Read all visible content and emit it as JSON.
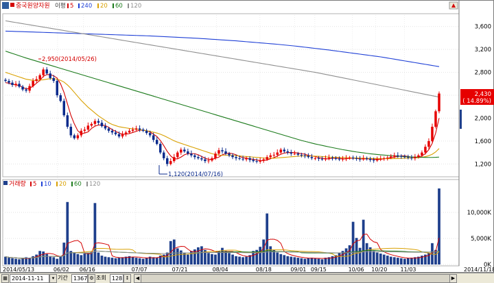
{
  "header": {
    "title": "중국원양자원",
    "ma_prefix": "이평",
    "ma": [
      {
        "label": "5",
        "color": "#d40000"
      },
      {
        "label": "240",
        "color": "#1e3fd6"
      },
      {
        "label": "20",
        "color": "#d9a000"
      },
      {
        "label": "60",
        "color": "#1a7a1a"
      },
      {
        "label": "120",
        "color": "#8e8e8e"
      }
    ]
  },
  "volume_header": {
    "title": "거래량",
    "ma": [
      {
        "label": "5",
        "color": "#d40000"
      },
      {
        "label": "10",
        "color": "#1e3fd6"
      },
      {
        "label": "20",
        "color": "#d9a000"
      },
      {
        "label": "60",
        "color": "#1a7a1a"
      },
      {
        "label": "120",
        "color": "#8e8e8e"
      }
    ]
  },
  "annotations": {
    "high": "2,950(2014/05/26)",
    "low": "1,120(2014/07/16)"
  },
  "current_price": {
    "price": "2,430",
    "change": "( 14.89%)"
  },
  "x_labels": [
    "2014/05/13",
    "06/02",
    "06/16",
    "07/07",
    "07/21",
    "08/04",
    "08/18",
    "09/01",
    "09/15",
    "10/06",
    "10/20",
    "11/03",
    "2014/11/18"
  ],
  "toolbar": {
    "date": "2014-11-11",
    "period_label": "기간",
    "period_value": "1367",
    "view_label": "조회",
    "count_value": "128"
  },
  "colors": {
    "up": "#e60000",
    "down": "#0a2a8c",
    "volume": "#1e3f8c"
  },
  "chart_data": [
    {
      "type": "candlestick",
      "title": "",
      "ylim": [
        1000,
        3800
      ],
      "y_ticks": [
        "3,600",
        "3,200",
        "2,800",
        "2,400",
        "2,000",
        "1,600",
        "1,200"
      ],
      "y_tick_values": [
        3600,
        3200,
        2800,
        2400,
        2000,
        1600,
        1200
      ],
      "x_tick_labels": [
        "2014/05/13",
        "06/02",
        "06/16",
        "07/07",
        "07/21",
        "08/04",
        "08/18",
        "09/01",
        "09/15",
        "10/06",
        "10/20",
        "11/03",
        "2014/11/18"
      ],
      "close": [
        2650,
        2620,
        2580,
        2600,
        2550,
        2500,
        2480,
        2560,
        2650,
        2680,
        2750,
        2850,
        2780,
        2700,
        2650,
        2400,
        2300,
        2050,
        1850,
        1700,
        1650,
        1700,
        1780,
        1800,
        1870,
        1900,
        1950,
        1920,
        1860,
        1820,
        1780,
        1750,
        1720,
        1680,
        1720,
        1750,
        1780,
        1800,
        1820,
        1800,
        1780,
        1740,
        1700,
        1620,
        1550,
        1400,
        1300,
        1200,
        1250,
        1320,
        1400,
        1450,
        1420,
        1380,
        1350,
        1320,
        1300,
        1280,
        1250,
        1260,
        1300,
        1380,
        1440,
        1420,
        1380,
        1350,
        1320,
        1300,
        1290,
        1280,
        1300,
        1270,
        1250,
        1240,
        1260,
        1280,
        1320,
        1350,
        1360,
        1400,
        1450,
        1420,
        1400,
        1380,
        1380,
        1360,
        1350,
        1340,
        1320,
        1300,
        1300,
        1290,
        1280,
        1300,
        1310,
        1300,
        1290,
        1280,
        1290,
        1300,
        1310,
        1300,
        1290,
        1280,
        1300,
        1290,
        1270,
        1260,
        1280,
        1290,
        1300,
        1310,
        1330,
        1350,
        1340,
        1330,
        1320,
        1310,
        1300,
        1320,
        1350,
        1400,
        1500,
        1600,
        1850,
        2120,
        2430
      ],
      "ma_series": [
        {
          "name": "5",
          "color": "#d40000",
          "values": [
            2620,
            2610,
            2590,
            2580,
            2570,
            2540,
            2510,
            2520,
            2560,
            2610,
            2660,
            2730,
            2760,
            2760,
            2740,
            2700,
            2600,
            2450,
            2250,
            2050,
            1900,
            1780,
            1730,
            1740,
            1760,
            1820,
            1860,
            1880,
            1880,
            1870,
            1840,
            1800,
            1770,
            1740,
            1720,
            1720,
            1730,
            1750,
            1770,
            1790,
            1790,
            1780,
            1760,
            1720,
            1680,
            1610,
            1520,
            1420,
            1340,
            1290,
            1290,
            1320,
            1360,
            1380,
            1380,
            1380,
            1360,
            1330,
            1300,
            1280,
            1280,
            1300,
            1320,
            1360,
            1380,
            1390,
            1380,
            1360,
            1330,
            1310,
            1300,
            1290,
            1280,
            1270,
            1260,
            1260,
            1270,
            1290,
            1310,
            1340,
            1370,
            1390,
            1400,
            1400,
            1400,
            1390,
            1380,
            1370,
            1350,
            1340,
            1330,
            1310,
            1300,
            1290,
            1290,
            1300,
            1300,
            1300,
            1290,
            1290,
            1300,
            1300,
            1300,
            1290,
            1290,
            1290,
            1290,
            1280,
            1280,
            1280,
            1290,
            1300,
            1310,
            1320,
            1330,
            1340,
            1340,
            1330,
            1320,
            1320,
            1320,
            1340,
            1380,
            1450,
            1560,
            1740,
            2000
          ]
        },
        {
          "name": "240",
          "color": "#1e3fd6",
          "values": [
            3520,
            3518,
            3516,
            3514,
            3512,
            3510,
            3508,
            3506,
            3504,
            3502,
            3500,
            3498,
            3496,
            3494,
            3492,
            3490,
            3488,
            3486,
            3484,
            3482,
            3480,
            3478,
            3476,
            3474,
            3472,
            3470,
            3468,
            3466,
            3464,
            3462,
            3460,
            3458,
            3456,
            3454,
            3452,
            3450,
            3448,
            3446,
            3444,
            3442,
            3440,
            3438,
            3436,
            3433,
            3430,
            3427,
            3424,
            3421,
            3418,
            3415,
            3412,
            3409,
            3406,
            3403,
            3400,
            3397,
            3394,
            3390,
            3386,
            3382,
            3378,
            3374,
            3370,
            3366,
            3362,
            3358,
            3354,
            3350,
            3345,
            3340,
            3335,
            3330,
            3325,
            3320,
            3315,
            3310,
            3305,
            3300,
            3295,
            3290,
            3284,
            3278,
            3272,
            3266,
            3260,
            3253,
            3246,
            3239,
            3232,
            3225,
            3218,
            3211,
            3204,
            3197,
            3190,
            3182,
            3174,
            3166,
            3158,
            3150,
            3142,
            3134,
            3126,
            3118,
            3110,
            3102,
            3094,
            3086,
            3078,
            3070,
            3060,
            3050,
            3040,
            3030,
            3020,
            3010,
            3000,
            2990,
            2980,
            2970,
            2960,
            2950,
            2940,
            2930,
            2920,
            2910,
            2900
          ]
        },
        {
          "name": "20",
          "color": "#d9a000",
          "values": [
            2800,
            2780,
            2760,
            2740,
            2720,
            2700,
            2680,
            2670,
            2660,
            2660,
            2665,
            2670,
            2680,
            2690,
            2690,
            2680,
            2660,
            2630,
            2580,
            2520,
            2450,
            2380,
            2310,
            2250,
            2190,
            2140,
            2090,
            2040,
            2000,
            1960,
            1920,
            1890,
            1870,
            1850,
            1840,
            1830,
            1820,
            1815,
            1810,
            1800,
            1790,
            1780,
            1770,
            1755,
            1740,
            1720,
            1695,
            1665,
            1635,
            1605,
            1580,
            1560,
            1540,
            1520,
            1500,
            1480,
            1460,
            1440,
            1420,
            1400,
            1380,
            1365,
            1355,
            1350,
            1350,
            1350,
            1350,
            1345,
            1340,
            1335,
            1330,
            1325,
            1320,
            1315,
            1310,
            1305,
            1300,
            1300,
            1300,
            1305,
            1310,
            1315,
            1320,
            1325,
            1330,
            1335,
            1338,
            1340,
            1340,
            1338,
            1336,
            1334,
            1330,
            1325,
            1320,
            1318,
            1316,
            1314,
            1312,
            1310,
            1308,
            1306,
            1304,
            1302,
            1300,
            1298,
            1296,
            1295,
            1294,
            1293,
            1292,
            1292,
            1293,
            1294,
            1296,
            1298,
            1300,
            1302,
            1304,
            1306,
            1310,
            1318,
            1328,
            1345,
            1370,
            1410,
            1470
          ]
        },
        {
          "name": "60",
          "color": "#1a7a1a",
          "values": [
            3170,
            3150,
            3130,
            3110,
            3090,
            3070,
            3050,
            3032,
            3014,
            2996,
            2978,
            2960,
            2942,
            2924,
            2906,
            2888,
            2870,
            2852,
            2834,
            2816,
            2798,
            2780,
            2762,
            2744,
            2726,
            2708,
            2690,
            2672,
            2654,
            2636,
            2618,
            2600,
            2582,
            2564,
            2546,
            2528,
            2510,
            2492,
            2474,
            2456,
            2438,
            2420,
            2402,
            2384,
            2366,
            2348,
            2330,
            2312,
            2294,
            2276,
            2258,
            2240,
            2222,
            2204,
            2186,
            2168,
            2150,
            2132,
            2114,
            2096,
            2078,
            2060,
            2042,
            2024,
            2006,
            1988,
            1970,
            1952,
            1934,
            1916,
            1898,
            1880,
            1862,
            1844,
            1826,
            1808,
            1790,
            1772,
            1754,
            1736,
            1718,
            1700,
            1682,
            1664,
            1646,
            1628,
            1610,
            1595,
            1580,
            1565,
            1550,
            1537,
            1524,
            1511,
            1498,
            1486,
            1474,
            1462,
            1450,
            1440,
            1430,
            1420,
            1410,
            1402,
            1394,
            1386,
            1378,
            1372,
            1366,
            1360,
            1355,
            1350,
            1345,
            1341,
            1337,
            1333,
            1329,
            1326,
            1323,
            1320,
            1318,
            1316,
            1315,
            1314,
            1314,
            1316,
            1320
          ]
        },
        {
          "name": "120",
          "color": "#8e8e8e",
          "values": [
            3700,
            3690,
            3680,
            3670,
            3660,
            3650,
            3640,
            3630,
            3620,
            3610,
            3600,
            3590,
            3580,
            3570,
            3560,
            3550,
            3540,
            3530,
            3520,
            3510,
            3500,
            3490,
            3480,
            3470,
            3460,
            3450,
            3440,
            3430,
            3420,
            3410,
            3400,
            3390,
            3380,
            3370,
            3360,
            3350,
            3340,
            3330,
            3320,
            3310,
            3300,
            3290,
            3280,
            3270,
            3260,
            3250,
            3240,
            3230,
            3220,
            3210,
            3200,
            3190,
            3180,
            3170,
            3160,
            3150,
            3140,
            3130,
            3120,
            3110,
            3100,
            3090,
            3080,
            3070,
            3060,
            3050,
            3040,
            3030,
            3020,
            3010,
            3000,
            2990,
            2980,
            2970,
            2960,
            2950,
            2940,
            2930,
            2920,
            2910,
            2900,
            2890,
            2880,
            2870,
            2860,
            2850,
            2840,
            2830,
            2820,
            2810,
            2800,
            2788,
            2776,
            2764,
            2752,
            2740,
            2728,
            2716,
            2704,
            2692,
            2680,
            2668,
            2656,
            2644,
            2632,
            2620,
            2608,
            2596,
            2584,
            2572,
            2560,
            2548,
            2536,
            2524,
            2512,
            2500,
            2488,
            2476,
            2464,
            2452,
            2440,
            2428,
            2416,
            2404,
            2392,
            2380,
            2368
          ]
        }
      ]
    },
    {
      "type": "bar",
      "title": "",
      "ylim": [
        0,
        15000
      ],
      "y_ticks": [
        "10,000K",
        "5,000K",
        "0K"
      ],
      "y_tick_values": [
        10000,
        5000,
        0
      ],
      "values": [
        1500,
        1300,
        1200,
        1100,
        1000,
        1200,
        1400,
        1300,
        1600,
        1900,
        2600,
        2500,
        2000,
        1500,
        1400,
        1100,
        1600,
        4200,
        12000,
        2600,
        2300,
        2000,
        1800,
        2100,
        2200,
        2400,
        11800,
        2300,
        1700,
        1500,
        1400,
        1300,
        1200,
        1300,
        1400,
        1500,
        1600,
        1400,
        1300,
        1200,
        1100,
        1300,
        1500,
        1400,
        1300,
        1700,
        1900,
        2300,
        4500,
        4800,
        3100,
        2700,
        2200,
        1900,
        2600,
        2900,
        3300,
        3500,
        2800,
        2200,
        2000,
        1900,
        2600,
        3200,
        2600,
        2200,
        1900,
        1600,
        1500,
        1400,
        1500,
        1800,
        2600,
        2800,
        3400,
        4800,
        9800,
        3500,
        2800,
        2300,
        2000,
        1800,
        1600,
        1500,
        1400,
        1300,
        1200,
        1100,
        1200,
        1300,
        1200,
        1100,
        1000,
        1300,
        1400,
        1600,
        1800,
        2200,
        2600,
        3100,
        3700,
        8200,
        5100,
        3200,
        8600,
        4100,
        3300,
        2600,
        2300,
        2100,
        1900,
        1700,
        1500,
        1400,
        1300,
        1200,
        1100,
        1200,
        1300,
        1400,
        1500,
        1700,
        1900,
        2200,
        4100,
        2800,
        14600
      ]
    }
  ]
}
